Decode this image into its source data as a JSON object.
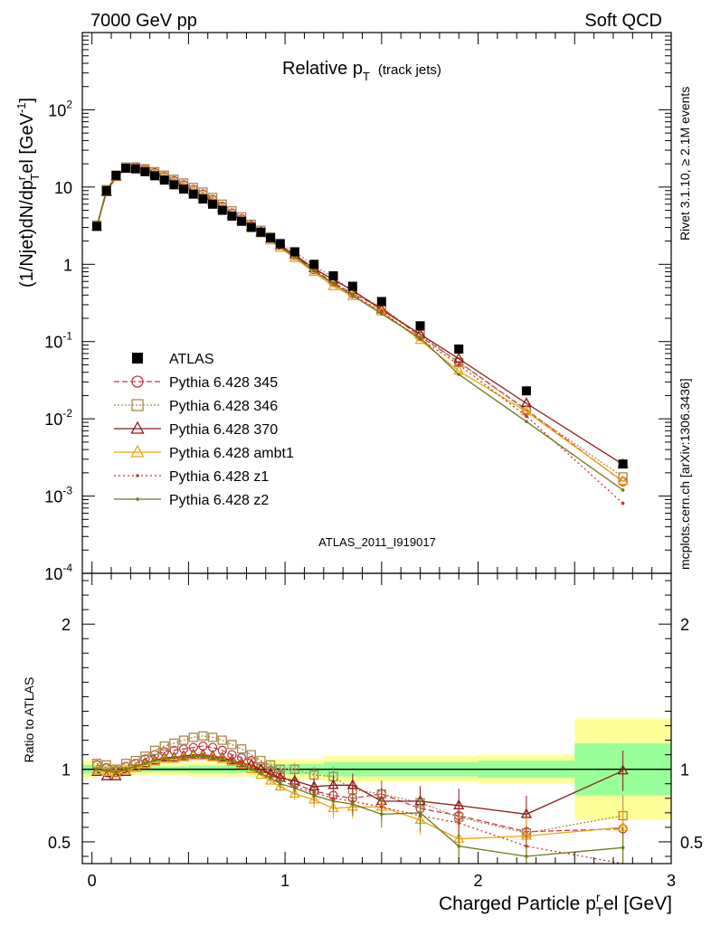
{
  "header": {
    "left": "7000 GeV pp",
    "right": "Soft QCD"
  },
  "side": {
    "rivet": "Rivet 3.1.10, ≥ 2.1M events",
    "mcplots": "mcplots.cern.ch [arXiv:1306.3436]"
  },
  "chart_data": {
    "type": "scatter",
    "title_main": "Relative p",
    "title_sub": "T",
    "title_note": "(track jets)",
    "analysis_id": "ATLAS_2011_I919017",
    "ylabel_main": "(1/Njet)dN/dp",
    "ylabel_sup": "r",
    "ylabel_sub": "T",
    "ylabel_tail": "el [GeV",
    "ylabel_exp": "-1",
    "ylabel_ratio": "Ratio to ATLAS",
    "xlabel_main": "Charged Particle p",
    "xlabel_sup": "r",
    "xlabel_sub": "T",
    "xlabel_tail": "el [GeV]",
    "xlim": [
      -0.05,
      3.0
    ],
    "ylim_top": [
      0.0001,
      1000
    ],
    "ylim_ratio": [
      0.35,
      2.35
    ],
    "yscale_top": "log",
    "legend_position": "middle-left",
    "x_ticks": [
      "0",
      "1",
      "2",
      "3"
    ],
    "y_ticks_top": [
      {
        "base": "10",
        "exp": "-4"
      },
      {
        "base": "10",
        "exp": "-3"
      },
      {
        "base": "10",
        "exp": "-2"
      },
      {
        "base": "10",
        "exp": "-1"
      },
      {
        "base": "1",
        "exp": ""
      },
      {
        "base": "10",
        "exp": ""
      },
      {
        "base": "10",
        "exp": "2"
      }
    ],
    "y_ticks_ratio": [
      "0.5",
      "1",
      "2"
    ],
    "x": [
      0.025,
      0.075,
      0.125,
      0.175,
      0.225,
      0.275,
      0.325,
      0.375,
      0.425,
      0.475,
      0.525,
      0.575,
      0.625,
      0.675,
      0.725,
      0.775,
      0.825,
      0.875,
      0.925,
      0.975,
      1.05,
      1.15,
      1.25,
      1.35,
      1.5,
      1.7,
      1.9,
      2.25,
      2.75
    ],
    "data": {
      "name": "ATLAS",
      "values": [
        3.1,
        9.0,
        14.2,
        17.5,
        17.2,
        15.8,
        14.0,
        12.3,
        10.7,
        9.4,
        8.1,
        7.0,
        6.0,
        5.0,
        4.2,
        3.6,
        3.0,
        2.6,
        2.2,
        1.85,
        1.45,
        1.0,
        0.71,
        0.52,
        0.33,
        0.16,
        0.08,
        0.023,
        0.0026
      ]
    },
    "series": [
      {
        "name": "Pythia 6.428 345",
        "color": "#c0394a",
        "dash": "6,3",
        "marker": "circle",
        "ratio": [
          1.03,
          1.01,
          0.99,
          1.02,
          1.04,
          1.07,
          1.1,
          1.12,
          1.13,
          1.14,
          1.15,
          1.16,
          1.15,
          1.13,
          1.1,
          1.08,
          1.06,
          1.02,
          0.99,
          0.96,
          0.9,
          0.85,
          0.82,
          0.8,
          0.83,
          0.73,
          0.68,
          0.57,
          0.59
        ]
      },
      {
        "name": "Pythia 6.428 346",
        "color": "#a58a4a",
        "dash": "2,2",
        "marker": "square",
        "ratio": [
          1.04,
          1.03,
          1.0,
          1.04,
          1.06,
          1.09,
          1.13,
          1.16,
          1.18,
          1.2,
          1.22,
          1.23,
          1.22,
          1.2,
          1.17,
          1.14,
          1.1,
          1.06,
          1.03,
          1.0,
          1.0,
          0.96,
          0.95,
          0.86,
          0.83,
          0.77,
          0.67,
          0.56,
          0.68
        ]
      },
      {
        "name": "Pythia 6.428 370",
        "color": "#8b1a1a",
        "dash": "",
        "marker": "triangle",
        "ratio": [
          0.98,
          0.95,
          0.95,
          0.98,
          1.01,
          1.04,
          1.06,
          1.08,
          1.08,
          1.09,
          1.1,
          1.1,
          1.09,
          1.08,
          1.06,
          1.04,
          1.03,
          1.0,
          0.97,
          0.94,
          0.92,
          0.88,
          0.89,
          0.89,
          0.78,
          0.78,
          0.75,
          0.69,
          0.99
        ]
      },
      {
        "name": "Pythia 6.428 ambt1",
        "color": "#f0a30a",
        "dash": "",
        "marker": "triangle",
        "ratio": [
          0.99,
          0.98,
          0.97,
          0.99,
          1.01,
          1.03,
          1.05,
          1.07,
          1.07,
          1.08,
          1.09,
          1.09,
          1.08,
          1.07,
          1.05,
          1.03,
          1.0,
          0.96,
          0.92,
          0.88,
          0.83,
          0.79,
          0.73,
          0.74,
          0.74,
          0.65,
          0.52,
          0.54,
          0.6
        ]
      },
      {
        "name": "Pythia 6.428 z1",
        "color": "#d32f2f",
        "dash": "2,3",
        "marker": "dot",
        "ratio": [
          1.0,
          0.99,
          0.98,
          1.0,
          1.02,
          1.04,
          1.06,
          1.07,
          1.08,
          1.09,
          1.09,
          1.1,
          1.09,
          1.08,
          1.07,
          1.05,
          1.02,
          0.99,
          0.96,
          0.93,
          0.88,
          0.84,
          0.8,
          0.78,
          0.74,
          0.68,
          0.63,
          0.47,
          0.31
        ]
      },
      {
        "name": "Pythia 6.428 z2",
        "color": "#6b7a1a",
        "dash": "",
        "marker": "dot",
        "ratio": [
          1.0,
          0.99,
          0.98,
          1.0,
          1.02,
          1.04,
          1.06,
          1.07,
          1.08,
          1.08,
          1.09,
          1.09,
          1.08,
          1.07,
          1.05,
          1.03,
          1.0,
          0.97,
          0.94,
          0.9,
          0.87,
          0.82,
          0.78,
          0.76,
          0.69,
          0.7,
          0.47,
          0.4,
          0.46
        ]
      }
    ],
    "band_green": [
      [
        -0.05,
        0.025,
        0.03
      ],
      [
        0.025,
        0.1,
        0.02
      ],
      [
        0.1,
        0.5,
        0.02
      ],
      [
        0.5,
        0.9,
        0.025
      ],
      [
        0.9,
        1.2,
        0.035
      ],
      [
        1.2,
        2.0,
        0.05
      ],
      [
        2.0,
        2.5,
        0.06
      ],
      [
        2.5,
        3.0,
        0.18
      ]
    ],
    "band_yellow": [
      [
        -0.05,
        0.025,
        0.06
      ],
      [
        0.025,
        0.1,
        0.045
      ],
      [
        0.1,
        0.5,
        0.04
      ],
      [
        0.5,
        0.9,
        0.05
      ],
      [
        0.9,
        1.2,
        0.07
      ],
      [
        1.2,
        2.0,
        0.09
      ],
      [
        2.0,
        2.5,
        0.1
      ],
      [
        2.5,
        3.0,
        0.35
      ]
    ]
  }
}
